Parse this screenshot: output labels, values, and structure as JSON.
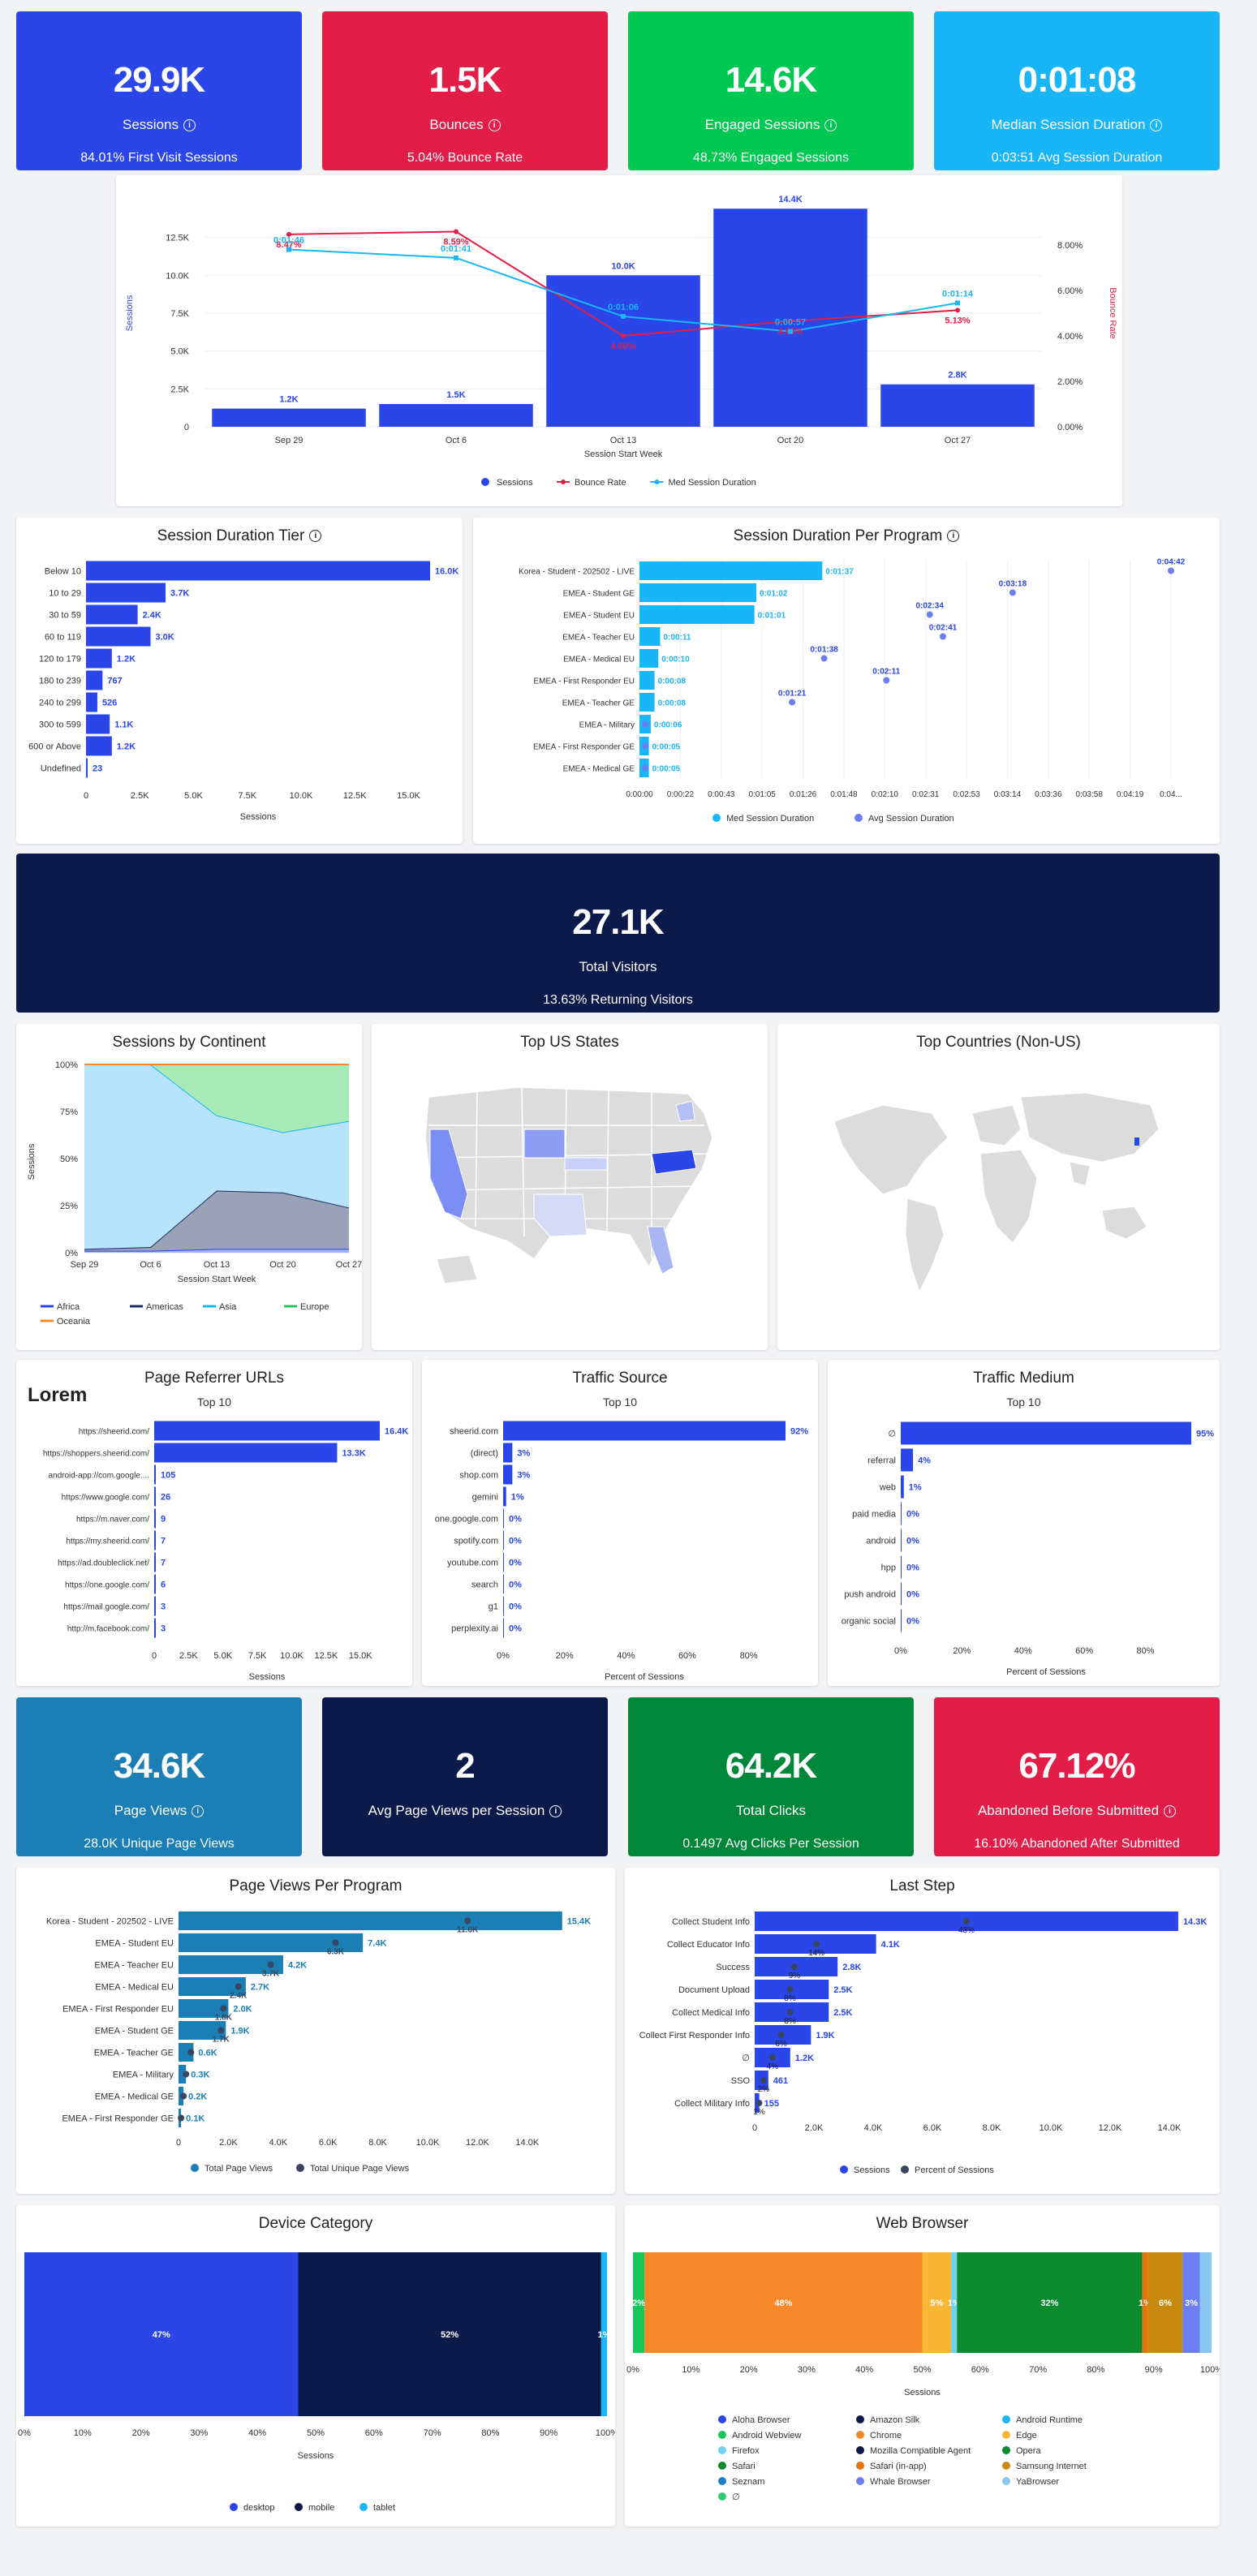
{
  "kpis_top": [
    {
      "value": "29.9K",
      "label": "Sessions",
      "sub": "84.01% First Visit Sessions",
      "color": "#2a46e8"
    },
    {
      "value": "1.5K",
      "label": "Bounces",
      "sub": "5.04% Bounce Rate",
      "color": "#e11d48"
    },
    {
      "value": "14.6K",
      "label": "Engaged Sessions",
      "sub": "48.73% Engaged Sessions",
      "color": "#00c853"
    },
    {
      "value": "0:01:08",
      "label": "Median Session Duration",
      "sub": "0:03:51 Avg Session Duration",
      "color": "#18b6f6"
    }
  ],
  "weekly_chart": {
    "chart_data": {
      "type": "bar",
      "categories": [
        "Sep 29",
        "Oct 6",
        "Oct 13",
        "Oct 20",
        "Oct 27"
      ],
      "values": [
        1200,
        1500,
        10000,
        14400,
        2800
      ],
      "value_labels": [
        "1.2K",
        "1.5K",
        "10.0K",
        "14.4K",
        "2.8K"
      ],
      "ylim": [
        0,
        14400
      ],
      "yticks": [
        "0",
        "2.5K",
        "5.0K",
        "7.5K",
        "10.0K",
        "12.5K"
      ],
      "ylabel": "Sessions",
      "xlabel": "Session Start Week",
      "y2label": "Bounce Rate",
      "y2ticks": [
        "0.00%",
        "2.00%",
        "4.00%",
        "6.00%",
        "8.00%"
      ],
      "bounce_rate": [
        8.47,
        8.59,
        4.0,
        4.65,
        5.13
      ],
      "bounce_labels": [
        "8.47%",
        "8.59%",
        "4.00%",
        "4.65%",
        "5.13%"
      ],
      "duration_sec": [
        106,
        101,
        66,
        57,
        74
      ],
      "duration_labels": [
        "0:01:46",
        "0:01:41",
        "0:01:06",
        "0:00:57",
        "0:01:14"
      ],
      "legend": [
        "Sessions",
        "Bounce Rate",
        "Med Session Duration"
      ]
    }
  },
  "duration_tier": {
    "title": "Session Duration Tier",
    "chart_data": {
      "type": "bar",
      "categories": [
        "Below 10",
        "10 to 29",
        "30 to 59",
        "60 to 119",
        "120 to 179",
        "180 to 239",
        "240 to 299",
        "300 to 599",
        "600 or Above",
        "Undefined"
      ],
      "values": [
        16000,
        3700,
        2400,
        3000,
        1200,
        767,
        526,
        1100,
        1200,
        23
      ],
      "value_labels": [
        "16.0K",
        "3.7K",
        "2.4K",
        "3.0K",
        "1.2K",
        "767",
        "526",
        "1.1K",
        "1.2K",
        "23"
      ],
      "xticks": [
        "0",
        "2.5K",
        "5.0K",
        "7.5K",
        "10.0K",
        "12.5K",
        "15.0K"
      ],
      "xlabel": "Sessions"
    }
  },
  "duration_program": {
    "title": "Session Duration Per Program",
    "chart_data": {
      "type": "bar",
      "categories": [
        "Korea - Student - 202502 - LIVE",
        "EMEA - Student GE",
        "EMEA - Student EU",
        "EMEA - Teacher EU",
        "EMEA - Medical EU",
        "EMEA - First Responder EU",
        "EMEA - Teacher GE",
        "EMEA - Military",
        "EMEA - First Responder GE",
        "EMEA - Medical GE"
      ],
      "med_sec": [
        97,
        62,
        61,
        11,
        10,
        8,
        8,
        6,
        5,
        5
      ],
      "med_labels": [
        "0:01:37",
        "0:01:02",
        "0:01:01",
        "0:00:11",
        "0:00:10",
        "0:00:08",
        "0:00:08",
        "0:00:06",
        "0:00:05",
        "0:00:05"
      ],
      "avg_sec": [
        282,
        198,
        154,
        161,
        98,
        131,
        81,
        3,
        3,
        3
      ],
      "avg_labels": [
        "0:04:42",
        "0:03:18",
        "0:02:34",
        "0:02:41",
        "0:01:38",
        "0:02:11",
        "0:01:21",
        "",
        "",
        ""
      ],
      "xticks": [
        "0:00:00",
        "0:00:22",
        "0:00:43",
        "0:01:05",
        "0:01:26",
        "0:01:48",
        "0:02:10",
        "0:02:31",
        "0:02:53",
        "0:03:14",
        "0:03:36",
        "0:03:58",
        "0:04:19",
        "0:04..."
      ],
      "legend": [
        "Med Session Duration",
        "Avg Session Duration"
      ]
    }
  },
  "visitors": {
    "value": "27.1K",
    "label": "Total Visitors",
    "sub": "13.63% Returning Visitors",
    "color": "#0b1a4a"
  },
  "continent": {
    "title": "Sessions by Continent",
    "chart_data": {
      "type": "area",
      "x": [
        "Sep 29",
        "Oct 6",
        "Oct 13",
        "Oct 20",
        "Oct 27"
      ],
      "series": [
        {
          "name": "Africa",
          "values": [
            1,
            1,
            2,
            2,
            2
          ]
        },
        {
          "name": "Americas",
          "values": [
            1,
            2,
            31,
            30,
            22
          ]
        },
        {
          "name": "Asia",
          "values": [
            98,
            97,
            40,
            32,
            46
          ]
        },
        {
          "name": "Europe",
          "values": [
            0,
            0,
            27,
            36,
            30
          ]
        },
        {
          "name": "Oceania",
          "values": [
            0,
            0,
            0,
            0,
            0
          ]
        }
      ],
      "yticks": [
        "0%",
        "25%",
        "50%",
        "75%",
        "100%"
      ],
      "ylabel": "Sessions",
      "xlabel": "Session Start Week"
    },
    "legend": [
      "Africa",
      "Americas",
      "Asia",
      "Europe",
      "Oceania"
    ]
  },
  "us_states": {
    "title": "Top US States"
  },
  "countries": {
    "title": "Top Countries (Non-US)"
  },
  "referrer": {
    "title": "Page Referrer URLs",
    "sub": "Top 10",
    "overlay": "Lorem",
    "chart_data": {
      "type": "bar",
      "categories": [
        "https://sheerid.com/",
        "https://shoppers.sheerid.com/",
        "android-app://com.google....",
        "https://www.google.com/",
        "https://m.naver.com/",
        "https://my.sheerid.com/",
        "https://ad.doubleclick.net/",
        "https://one.google.com/",
        "https://mail.google.com/",
        "http://m.facebook.com/"
      ],
      "values": [
        16400,
        13300,
        105,
        26,
        9,
        7,
        7,
        6,
        3,
        3
      ],
      "value_labels": [
        "16.4K",
        "13.3K",
        "105",
        "26",
        "9",
        "7",
        "7",
        "6",
        "3",
        "3"
      ],
      "xticks": [
        "0",
        "2.5K",
        "5.0K",
        "7.5K",
        "10.0K",
        "12.5K",
        "15.0K"
      ],
      "xlabel": "Sessions"
    }
  },
  "traffic_source": {
    "title": "Traffic Source",
    "sub": "Top 10",
    "chart_data": {
      "type": "bar",
      "categories": [
        "sheerid.com",
        "(direct)",
        "shop.com",
        "gemini",
        "one.google.com",
        "spotify.com",
        "youtube.com",
        "search",
        "g1",
        "perplexity.ai"
      ],
      "values": [
        92,
        3,
        3,
        1,
        0,
        0,
        0,
        0,
        0,
        0
      ],
      "value_labels": [
        "92%",
        "3%",
        "3%",
        "1%",
        "0%",
        "0%",
        "0%",
        "0%",
        "0%",
        "0%"
      ],
      "xticks": [
        "0%",
        "20%",
        "40%",
        "60%",
        "80%"
      ],
      "xlabel": "Percent of Sessions"
    }
  },
  "traffic_medium": {
    "title": "Traffic Medium",
    "sub": "Top 10",
    "chart_data": {
      "type": "bar",
      "categories": [
        "∅",
        "referral",
        "web",
        "paid media",
        "android",
        "hpp",
        "push android",
        "organic social"
      ],
      "values": [
        95,
        4,
        1,
        0,
        0,
        0,
        0,
        0
      ],
      "value_labels": [
        "95%",
        "4%",
        "1%",
        "0%",
        "0%",
        "0%",
        "0%",
        "0%"
      ],
      "xticks": [
        "0%",
        "20%",
        "40%",
        "60%",
        "80%"
      ],
      "xlabel": "Percent of Sessions"
    }
  },
  "kpis_mid": [
    {
      "value": "34.6K",
      "label": "Page Views",
      "sub": "28.0K Unique Page Views",
      "color": "#1b7fb5"
    },
    {
      "value": "2",
      "label": "Avg Page Views per Session",
      "sub": "",
      "color": "#0b1a4a"
    },
    {
      "value": "64.2K",
      "label": "Total Clicks",
      "sub": "0.1497 Avg Clicks Per Session",
      "color": "#00873a"
    },
    {
      "value": "67.12%",
      "label": "Abandoned Before Submitted",
      "sub": "16.10% Abandoned After Submitted",
      "color": "#e11d48"
    }
  ],
  "pageviews": {
    "title": "Page Views Per Program",
    "chart_data": {
      "type": "bar",
      "categories": [
        "Korea - Student - 202502 - LIVE",
        "EMEA - Student EU",
        "EMEA - Teacher EU",
        "EMEA - Medical EU",
        "EMEA - First Responder EU",
        "EMEA - Student GE",
        "EMEA - Teacher GE",
        "EMEA - Military",
        "EMEA - Medical GE",
        "EMEA - First Responder GE"
      ],
      "values": [
        15400,
        7400,
        4200,
        2700,
        2000,
        1900,
        600,
        300,
        200,
        100
      ],
      "value_labels": [
        "15.4K",
        "7.4K",
        "4.2K",
        "2.7K",
        "2.0K",
        "1.9K",
        "0.6K",
        "0.3K",
        "0.2K",
        "0.1K"
      ],
      "unique": [
        11600,
        6300,
        3700,
        2400,
        1800,
        1700,
        500,
        300,
        200,
        100
      ],
      "unique_labels": [
        "11.6K",
        "6.3K",
        "3.7K",
        "2.4K",
        "1.8K",
        "1.7K",
        "",
        "",
        "",
        ""
      ],
      "xticks": [
        "0",
        "2.0K",
        "4.0K",
        "6.0K",
        "8.0K",
        "10.0K",
        "12.0K",
        "14.0K"
      ],
      "legend": [
        "Total Page Views",
        "Total Unique Page Views"
      ]
    }
  },
  "laststep": {
    "title": "Last Step",
    "chart_data": {
      "type": "bar",
      "categories": [
        "Collect Student Info",
        "Collect Educator Info",
        "Success",
        "Document Upload",
        "Collect Medical Info",
        "Collect First Responder Info",
        "∅",
        "SSO",
        "Collect Military Info"
      ],
      "values": [
        14300,
        4100,
        2800,
        2500,
        2500,
        1900,
        1200,
        461,
        155
      ],
      "value_labels": [
        "14.3K",
        "4.1K",
        "2.8K",
        "2.5K",
        "2.5K",
        "1.9K",
        "1.2K",
        "461",
        "155"
      ],
      "percent": [
        48,
        14,
        9,
        8,
        8,
        6,
        4,
        2,
        1
      ],
      "percent_labels": [
        "48%",
        "14%",
        "9%",
        "8%",
        "8%",
        "6%",
        "4%",
        "2%",
        "1%"
      ],
      "xticks": [
        "0",
        "2.0K",
        "4.0K",
        "6.0K",
        "8.0K",
        "10.0K",
        "12.0K",
        "14.0K"
      ],
      "legend": [
        "Sessions",
        "Percent of Sessions"
      ]
    }
  },
  "device": {
    "title": "Device Category",
    "chart_data": {
      "type": "bar",
      "series": [
        {
          "name": "desktop",
          "value": 47,
          "label": "47%",
          "color": "#2a46e8"
        },
        {
          "name": "mobile",
          "value": 52,
          "label": "52%",
          "color": "#0b1a4a"
        },
        {
          "name": "tablet",
          "value": 1,
          "label": "1%",
          "color": "#18b6f6"
        }
      ],
      "xticks": [
        "0%",
        "10%",
        "20%",
        "30%",
        "40%",
        "50%",
        "60%",
        "70%",
        "80%",
        "90%",
        "100%"
      ],
      "xlabel": "Sessions"
    }
  },
  "browser": {
    "title": "Web Browser",
    "chart_data": {
      "type": "bar",
      "series": [
        {
          "name": "Android Webview",
          "value": 2,
          "label": "2%",
          "color": "#16c75a"
        },
        {
          "name": "Chrome",
          "value": 48,
          "label": "48%",
          "color": "#f5892a"
        },
        {
          "name": "Edge",
          "value": 5,
          "label": "5%",
          "color": "#f7b733"
        },
        {
          "name": "Firefox",
          "value": 1,
          "label": "1%",
          "color": "#6fd3f0"
        },
        {
          "name": "Safari",
          "value": 32,
          "label": "32%",
          "color": "#0a8a2e"
        },
        {
          "name": "Safari (in-app)",
          "value": 1,
          "label": "1%",
          "color": "#e8730c"
        },
        {
          "name": "Samsung Internet",
          "value": 6,
          "label": "6%",
          "color": "#c98a10"
        },
        {
          "name": "Whale Browser",
          "value": 3,
          "label": "3%",
          "color": "#6c7ef0"
        },
        {
          "name": "YaBrowser",
          "value": 2,
          "label": "",
          "color": "#89c8f2"
        }
      ],
      "xticks": [
        "0%",
        "10%",
        "20%",
        "30%",
        "40%",
        "50%",
        "60%",
        "70%",
        "80%",
        "90%",
        "100%"
      ],
      "xlabel": "Sessions"
    },
    "legend": [
      {
        "name": "Aloha Browser",
        "color": "#2a46e8"
      },
      {
        "name": "Amazon Silk",
        "color": "#0b1a4a"
      },
      {
        "name": "Android Runtime",
        "color": "#18b6f6"
      },
      {
        "name": "Android Webview",
        "color": "#16c75a"
      },
      {
        "name": "Chrome",
        "color": "#f5892a"
      },
      {
        "name": "Edge",
        "color": "#f7b733"
      },
      {
        "name": "Firefox",
        "color": "#6fd3f0"
      },
      {
        "name": "Mozilla Compatible Agent",
        "color": "#0b1a4a"
      },
      {
        "name": "Opera",
        "color": "#0a8a2e"
      },
      {
        "name": "Safari",
        "color": "#0a8a2e"
      },
      {
        "name": "Safari (in-app)",
        "color": "#e8730c"
      },
      {
        "name": "Samsung Internet",
        "color": "#c98a10"
      },
      {
        "name": "Seznam",
        "color": "#1e7fc7"
      },
      {
        "name": "Whale Browser",
        "color": "#6c7ef0"
      },
      {
        "name": "YaBrowser",
        "color": "#89c8f2"
      },
      {
        "name": "∅",
        "color": "#2ecc71"
      }
    ]
  }
}
